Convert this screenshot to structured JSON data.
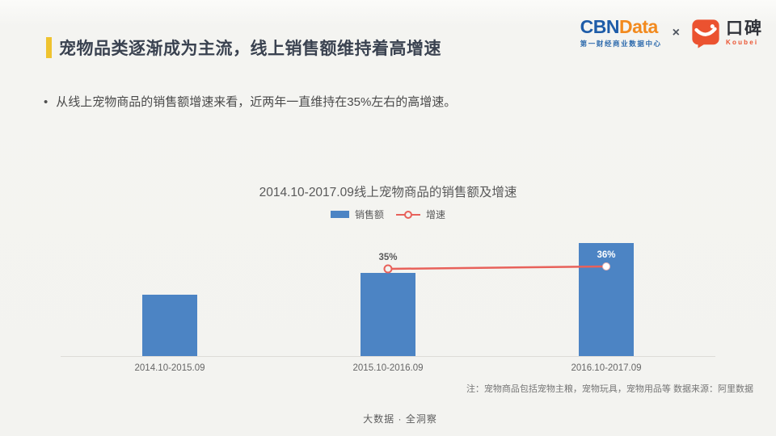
{
  "slide": {
    "title": "宠物品类逐渐成为主流，线上销售额维持着高增速",
    "bullet_glyph": "•",
    "bullet": "从线上宠物商品的销售额增速来看，近两年一直维持在35%左右的高增速。",
    "note": "注：宠物商品包括宠物主粮，宠物玩具，宠物用品等  数据来源：阿里数据",
    "footer": "大数据 · 全洞察",
    "accent_color": "#efc32f"
  },
  "logos": {
    "cbndata": {
      "part1": "CBN",
      "part2": "Data",
      "subtitle": "第一财经商业数据中心",
      "color_blue": "#1e5ca8",
      "color_orange": "#f28a1e"
    },
    "separator": "×",
    "koubei": {
      "name_cn": "口碑",
      "name_en": "Koubei",
      "color": "#eb5230"
    }
  },
  "chart_data": {
    "type": "bar",
    "title": "2014.10-2017.09线上宠物商品的销售额及增速",
    "categories": [
      "2014.10-2015.09",
      "2015.10-2016.09",
      "2016.10-2017.09"
    ],
    "series": [
      {
        "name": "销售额",
        "kind": "bar",
        "color": "#4c84c4",
        "values_relative_index": [
          100,
          135,
          184
        ]
      },
      {
        "name": "增速",
        "kind": "line",
        "color": "#e8615a",
        "values_percent": [
          null,
          35,
          36
        ],
        "point_labels": [
          "",
          "35%",
          "36%"
        ]
      }
    ],
    "legend_position": "top",
    "grid": false,
    "y_axis_visible": false,
    "x_axis_line": true
  }
}
